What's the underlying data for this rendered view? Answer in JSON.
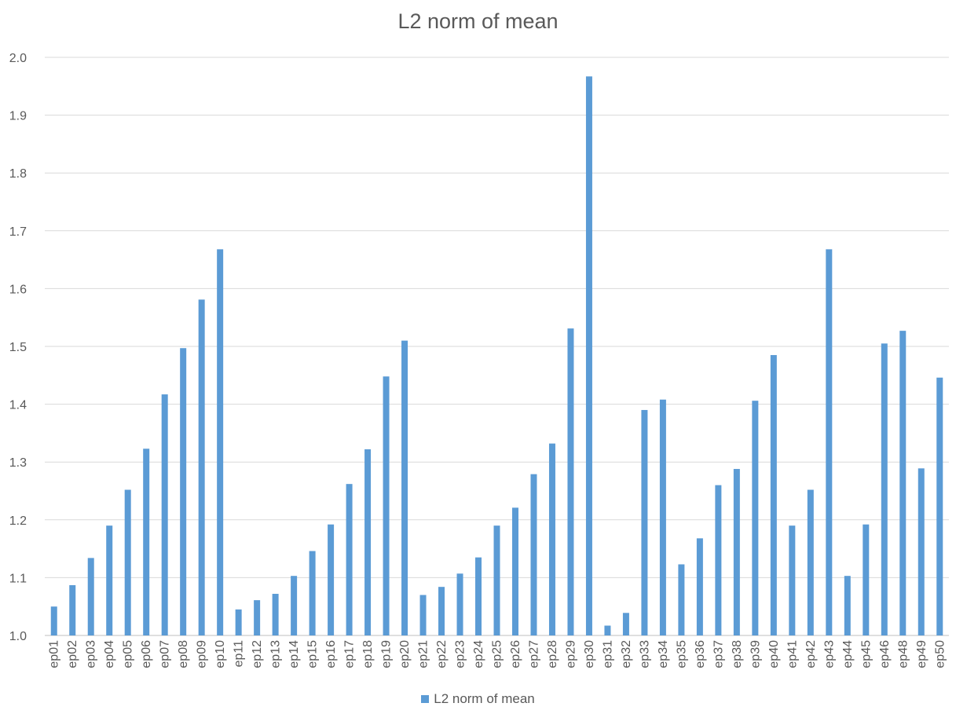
{
  "chart_data": {
    "type": "bar",
    "title": "L2 norm of mean",
    "xlabel": "",
    "ylabel": "",
    "ylim": [
      1.0,
      2.0
    ],
    "ytick_step": 0.1,
    "ytick_labels": [
      "1.0",
      "1.1",
      "1.2",
      "1.3",
      "1.4",
      "1.5",
      "1.6",
      "1.7",
      "1.8",
      "1.9",
      "2.0"
    ],
    "grid": true,
    "legend_position": "bottom",
    "bar_color": "#5b9bd5",
    "categories": [
      "ep01",
      "ep02",
      "ep03",
      "ep04",
      "ep05",
      "ep06",
      "ep07",
      "ep08",
      "ep09",
      "ep10",
      "ep11",
      "ep12",
      "ep13",
      "ep14",
      "ep15",
      "ep16",
      "ep17",
      "ep18",
      "ep19",
      "ep20",
      "ep21",
      "ep22",
      "ep23",
      "ep24",
      "ep25",
      "ep26",
      "ep27",
      "ep28",
      "ep29",
      "ep30",
      "ep31",
      "ep32",
      "ep33",
      "ep34",
      "ep35",
      "ep36",
      "ep37",
      "ep38",
      "ep39",
      "ep40",
      "ep41",
      "ep42",
      "ep43",
      "ep44",
      "ep45",
      "ep46",
      "ep48",
      "ep49",
      "ep50"
    ],
    "series": [
      {
        "name": "L2 norm of mean",
        "values": [
          1.05,
          1.087,
          1.134,
          1.19,
          1.252,
          1.323,
          1.417,
          1.497,
          1.581,
          1.668,
          1.045,
          1.061,
          1.072,
          1.103,
          1.146,
          1.192,
          1.262,
          1.322,
          1.448,
          1.51,
          1.07,
          1.084,
          1.107,
          1.135,
          1.19,
          1.221,
          1.279,
          1.332,
          1.531,
          1.967,
          1.017,
          1.039,
          1.39,
          1.408,
          1.123,
          1.168,
          1.26,
          1.288,
          1.406,
          1.485,
          1.19,
          1.252,
          1.668,
          1.103,
          1.192,
          1.505,
          1.527,
          1.289,
          1.446
        ]
      }
    ]
  }
}
